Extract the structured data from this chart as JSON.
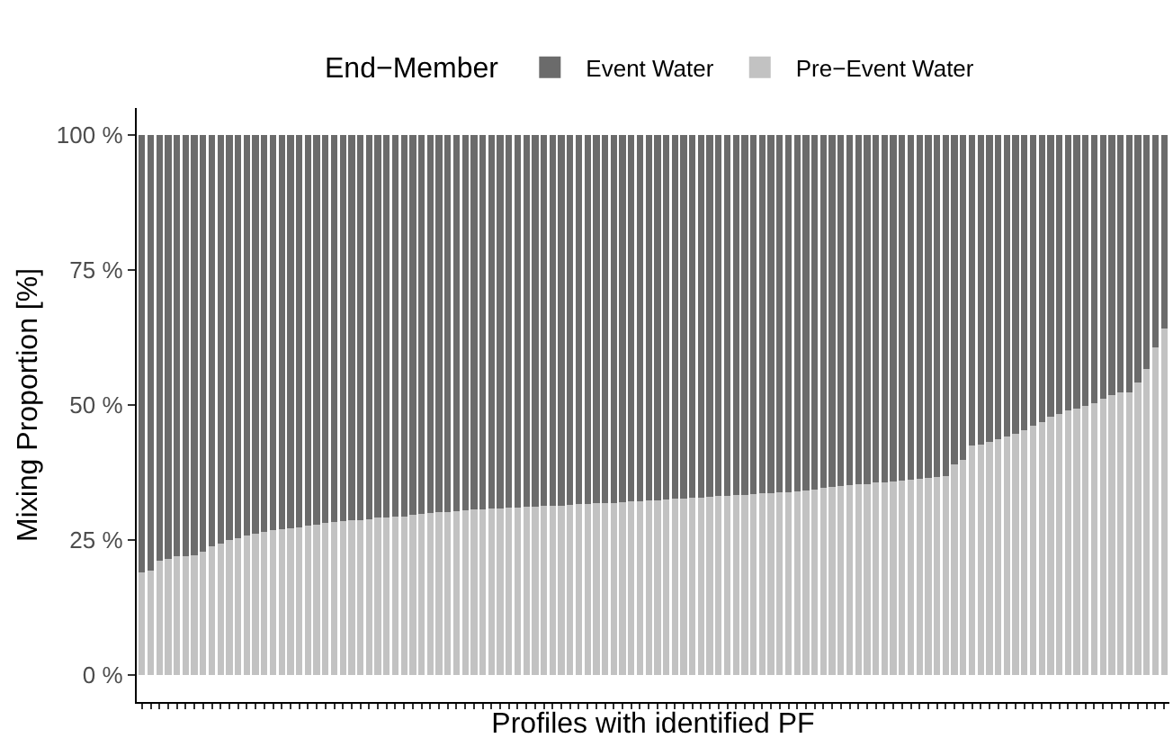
{
  "chart_data": {
    "type": "bar",
    "stacked": true,
    "xlabel": "Profiles with identified PF",
    "ylabel": "Mixing Proportion [%]",
    "legend_title": "End−Member",
    "categories": [
      null,
      null,
      null,
      null,
      null,
      null,
      null,
      null,
      null,
      null,
      null,
      null,
      null,
      null,
      null,
      null,
      null,
      null,
      null,
      null,
      null,
      null,
      null,
      null,
      null,
      null,
      null,
      null,
      null,
      null,
      null,
      null,
      null,
      null,
      null,
      null,
      null,
      null,
      null,
      null,
      null,
      null,
      null,
      null,
      null,
      null,
      null,
      null,
      null,
      null,
      null,
      null,
      null,
      null,
      null,
      null,
      null,
      null,
      null,
      null,
      null,
      null,
      null,
      null,
      null,
      null,
      null,
      null,
      null,
      null,
      null,
      null,
      null,
      null,
      null,
      null,
      null,
      null,
      null,
      null,
      null,
      null,
      null,
      null,
      null,
      null,
      null,
      null,
      null,
      null,
      null,
      null,
      null,
      null,
      null,
      null,
      null,
      null,
      null,
      null,
      null,
      null,
      null,
      null,
      null,
      null,
      null,
      null,
      null,
      null,
      null,
      null,
      null,
      null,
      null,
      null,
      null,
      null
    ],
    "series": [
      {
        "name": "Pre−Event Water",
        "color": "#c2c2c2",
        "values": [
          19.0,
          19.4,
          21.1,
          21.5,
          22.0,
          22.0,
          22.2,
          22.9,
          23.9,
          24.3,
          25.0,
          25.3,
          25.9,
          26.2,
          26.5,
          26.8,
          27.0,
          27.2,
          27.4,
          27.7,
          27.9,
          28.2,
          28.4,
          28.5,
          28.6,
          28.7,
          28.8,
          29.1,
          29.2,
          29.3,
          29.4,
          29.7,
          29.8,
          30.0,
          30.1,
          30.2,
          30.3,
          30.5,
          30.6,
          30.7,
          30.8,
          30.9,
          31.0,
          31.0,
          31.1,
          31.2,
          31.3,
          31.3,
          31.4,
          31.5,
          31.6,
          31.7,
          31.8,
          31.8,
          31.9,
          32.0,
          32.1,
          32.2,
          32.3,
          32.4,
          32.5,
          32.6,
          32.7,
          32.8,
          32.9,
          33.0,
          33.1,
          33.2,
          33.3,
          33.4,
          33.5,
          33.6,
          33.7,
          33.8,
          33.9,
          34.0,
          34.2,
          34.4,
          34.6,
          34.8,
          35.0,
          35.1,
          35.3,
          35.4,
          35.6,
          35.7,
          35.8,
          36.0,
          36.1,
          36.3,
          36.5,
          36.7,
          36.9,
          39.0,
          39.9,
          42.5,
          42.7,
          43.1,
          43.7,
          44.2,
          44.7,
          45.3,
          46.1,
          46.8,
          47.9,
          48.4,
          49.0,
          49.4,
          49.8,
          50.3,
          51.2,
          51.8,
          52.3,
          52.4,
          54.1,
          56.7,
          60.6,
          64.2
        ]
      },
      {
        "name": "Event Water",
        "color": "#6b6b6b",
        "values": [
          81.0,
          80.6,
          78.9,
          78.5,
          78.0,
          78.0,
          77.8,
          77.1,
          76.1,
          75.7,
          75.0,
          74.7,
          74.1,
          73.8,
          73.5,
          73.2,
          73.0,
          72.8,
          72.6,
          72.3,
          72.1,
          71.8,
          71.6,
          71.5,
          71.4,
          71.3,
          71.2,
          70.9,
          70.8,
          70.7,
          70.6,
          70.3,
          70.2,
          70.0,
          69.9,
          69.8,
          69.7,
          69.5,
          69.4,
          69.3,
          69.2,
          69.1,
          69.0,
          69.0,
          68.9,
          68.8,
          68.7,
          68.7,
          68.6,
          68.5,
          68.4,
          68.3,
          68.2,
          68.2,
          68.1,
          68.0,
          67.9,
          67.8,
          67.7,
          67.6,
          67.5,
          67.4,
          67.3,
          67.2,
          67.1,
          67.0,
          66.9,
          66.8,
          66.7,
          66.6,
          66.5,
          66.4,
          66.3,
          66.2,
          66.1,
          66.0,
          65.8,
          65.6,
          65.4,
          65.2,
          65.0,
          64.9,
          64.7,
          64.6,
          64.4,
          64.3,
          64.2,
          64.0,
          63.9,
          63.7,
          63.5,
          63.3,
          63.1,
          61.0,
          60.1,
          57.5,
          57.3,
          56.9,
          56.3,
          55.8,
          55.3,
          54.7,
          53.9,
          53.2,
          52.1,
          51.6,
          51.0,
          50.6,
          50.2,
          49.7,
          48.8,
          48.2,
          47.7,
          47.6,
          45.9,
          43.3,
          39.4,
          35.8
        ]
      }
    ],
    "ylim": [
      -5,
      105
    ],
    "yticks": [
      {
        "value": 0,
        "label": "0 %"
      },
      {
        "value": 25,
        "label": "25 %"
      },
      {
        "value": 50,
        "label": "50 %"
      },
      {
        "value": 75,
        "label": "75 %"
      },
      {
        "value": 100,
        "label": "100 %"
      }
    ],
    "tick_labels": "y",
    "legend": "top"
  }
}
